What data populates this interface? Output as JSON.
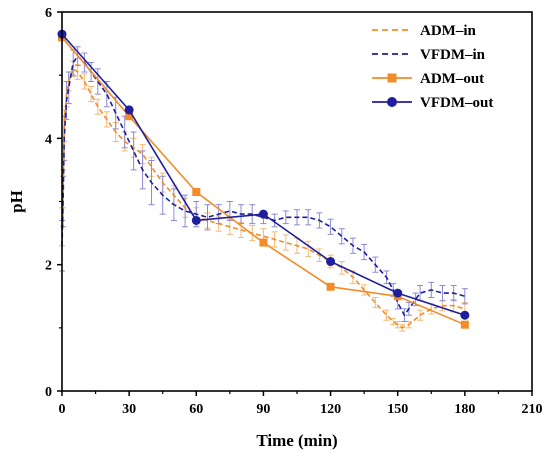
{
  "chart_data": {
    "type": "line",
    "xlabel": "Time (min)",
    "ylabel": "pH",
    "xlim": [
      0,
      210
    ],
    "ylim": [
      0,
      6
    ],
    "xticks": [
      0,
      30,
      60,
      90,
      120,
      150,
      180,
      210
    ],
    "yticks": [
      0,
      2,
      4,
      6
    ],
    "legend_position": "top-right",
    "series": [
      {
        "name": "ADM–in",
        "style": "dashed",
        "color": "#f28c28",
        "error_color": "#f7b870",
        "x": [
          0,
          0.5,
          1,
          2,
          3,
          5,
          7,
          10,
          13,
          16,
          20,
          24,
          28,
          32,
          36,
          40,
          45,
          50,
          55,
          60,
          65,
          70,
          75,
          80,
          85,
          90,
          95,
          100,
          105,
          110,
          115,
          120,
          125,
          130,
          135,
          140,
          145,
          148,
          150,
          152,
          155,
          160,
          165,
          170,
          175,
          180
        ],
        "y": [
          2.6,
          3.2,
          4.2,
          4.7,
          4.9,
          5.1,
          5.05,
          4.9,
          4.7,
          4.5,
          4.3,
          4.1,
          3.95,
          3.85,
          3.75,
          3.55,
          3.3,
          3.1,
          2.9,
          2.75,
          2.7,
          2.65,
          2.6,
          2.55,
          2.5,
          2.45,
          2.4,
          2.35,
          2.3,
          2.25,
          2.15,
          2.05,
          1.95,
          1.8,
          1.6,
          1.4,
          1.2,
          1.1,
          1.05,
          1.0,
          1.05,
          1.2,
          1.3,
          1.35,
          1.35,
          1.3
        ],
        "error": [
          0.3,
          0.3,
          0.25,
          0.2,
          0.15,
          0.12,
          0.12,
          0.12,
          0.12,
          0.12,
          0.12,
          0.15,
          0.15,
          0.15,
          0.15,
          0.15,
          0.15,
          0.15,
          0.15,
          0.15,
          0.12,
          0.12,
          0.12,
          0.12,
          0.12,
          0.12,
          0.12,
          0.12,
          0.12,
          0.12,
          0.1,
          0.1,
          0.1,
          0.1,
          0.08,
          0.08,
          0.08,
          0.05,
          0.05,
          0.05,
          0.05,
          0.08,
          0.08,
          0.08,
          0.1,
          0.1
        ]
      },
      {
        "name": "VFDM–in",
        "style": "dashed",
        "color": "#1f1f9e",
        "error_color": "#8a8ad6",
        "x": [
          0,
          0.5,
          1,
          2,
          3,
          5,
          7,
          10,
          13,
          16,
          20,
          24,
          28,
          32,
          36,
          40,
          45,
          50,
          55,
          60,
          65,
          70,
          75,
          80,
          85,
          90,
          95,
          100,
          105,
          110,
          115,
          120,
          125,
          130,
          135,
          140,
          145,
          148,
          150,
          153,
          155,
          158,
          160,
          165,
          170,
          175,
          180
        ],
        "y": [
          2.3,
          3.0,
          4.0,
          4.6,
          4.8,
          5.2,
          5.3,
          5.2,
          5.05,
          4.9,
          4.7,
          4.4,
          4.1,
          3.8,
          3.5,
          3.3,
          3.1,
          2.95,
          2.85,
          2.8,
          2.75,
          2.8,
          2.85,
          2.8,
          2.8,
          2.75,
          2.7,
          2.75,
          2.75,
          2.75,
          2.7,
          2.6,
          2.45,
          2.3,
          2.2,
          2.0,
          1.8,
          1.6,
          1.4,
          1.2,
          1.3,
          1.45,
          1.55,
          1.6,
          1.55,
          1.55,
          1.5
        ],
        "error": [
          0.4,
          0.4,
          0.35,
          0.3,
          0.25,
          0.2,
          0.15,
          0.15,
          0.15,
          0.2,
          0.2,
          0.25,
          0.25,
          0.3,
          0.3,
          0.35,
          0.3,
          0.25,
          0.25,
          0.2,
          0.2,
          0.15,
          0.15,
          0.15,
          0.15,
          0.1,
          0.1,
          0.1,
          0.12,
          0.12,
          0.12,
          0.12,
          0.12,
          0.12,
          0.12,
          0.12,
          0.1,
          0.1,
          0.1,
          0.1,
          0.1,
          0.1,
          0.12,
          0.12,
          0.12,
          0.12,
          0.12
        ]
      },
      {
        "name": "ADM–out",
        "style": "solid-square",
        "color": "#f28c28",
        "x": [
          0,
          30,
          60,
          90,
          120,
          150,
          180
        ],
        "y": [
          5.6,
          4.35,
          3.15,
          2.35,
          1.65,
          1.5,
          1.05
        ]
      },
      {
        "name": "VFDM–out",
        "style": "solid-circle",
        "color": "#1f1f9e",
        "x": [
          0,
          30,
          60,
          90,
          120,
          150,
          180
        ],
        "y": [
          5.65,
          4.45,
          2.7,
          2.8,
          2.05,
          1.55,
          1.2
        ]
      }
    ]
  }
}
